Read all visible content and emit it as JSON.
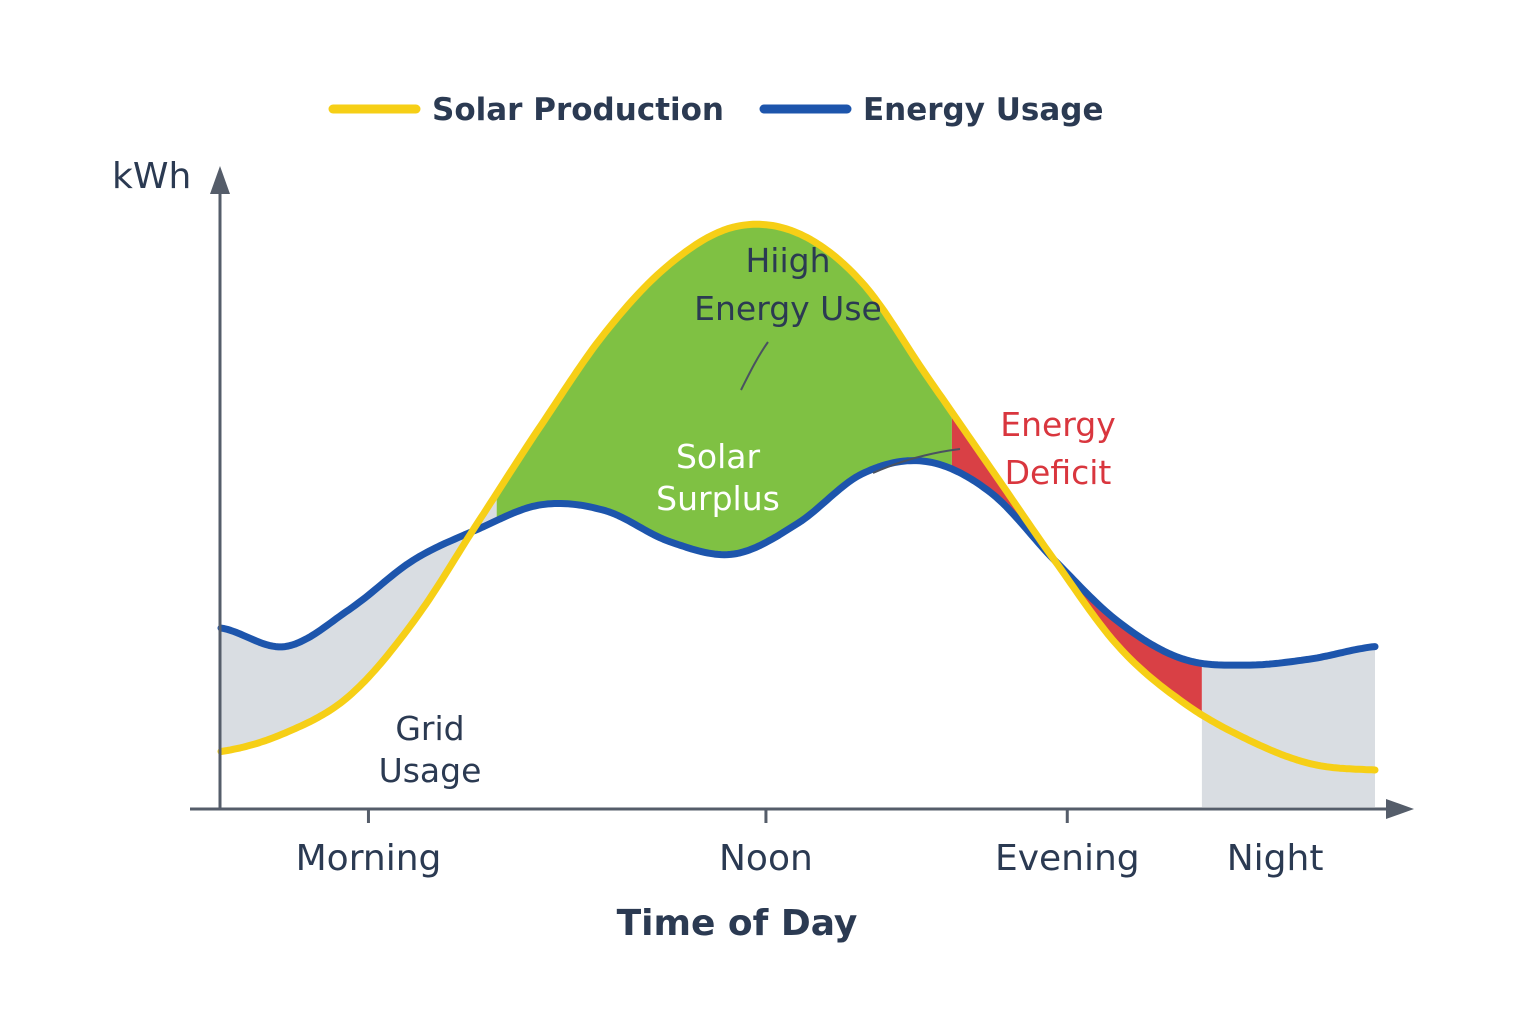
{
  "legend": {
    "solar_label": "Solar Production",
    "usage_label": "Energy Usage"
  },
  "colors": {
    "solar": "#f6cf16",
    "usage": "#1d55ac",
    "surplus": "#7fc143",
    "deficit": "#d94045",
    "grid": "#d9dde2",
    "axis": "#555d6a",
    "text": "#2b3a52",
    "deficit_text": "#d9363e"
  },
  "chart_data": {
    "type": "area",
    "title": "",
    "xlabel": "Time of Day",
    "ylabel": "kWh",
    "x": [
      0,
      1,
      2,
      3,
      4,
      5,
      6,
      7,
      8,
      9,
      10,
      11,
      12,
      13,
      14,
      15,
      16,
      17,
      18
    ],
    "ylim": [
      0,
      10
    ],
    "x_ticks": [
      {
        "x": 2.3,
        "label": "Morning"
      },
      {
        "x": 8.5,
        "label": "Noon"
      },
      {
        "x": 13.2,
        "label": "Evening"
      },
      {
        "x": 17.3,
        "label": "Night"
      }
    ],
    "series": [
      {
        "name": "Solar Production",
        "values": [
          0.9,
          1.2,
          1.8,
          3.0,
          4.6,
          6.2,
          7.7,
          8.8,
          9.4,
          9.3,
          8.5,
          7.0,
          5.5,
          4.0,
          2.6,
          1.7,
          1.1,
          0.7,
          0.6
        ]
      },
      {
        "name": "Energy Usage",
        "values": [
          2.9,
          2.6,
          3.2,
          4.0,
          4.5,
          4.9,
          4.8,
          4.3,
          4.1,
          4.6,
          5.4,
          5.6,
          5.1,
          4.0,
          3.0,
          2.4,
          2.3,
          2.4,
          2.6
        ]
      }
    ],
    "regions": [
      {
        "type": "grid",
        "from": 0,
        "to": 4.3
      },
      {
        "type": "surplus",
        "from": 4.3,
        "to": 11.4
      },
      {
        "type": "deficit",
        "from": 11.4,
        "to": 15.3
      },
      {
        "type": "grid",
        "from": 15.3,
        "to": 18
      }
    ],
    "annotations": {
      "surplus": "Solar\nSurplus",
      "peak": "Hiigh\nEnergy Use",
      "deficit": "Energy\nDeficit",
      "grid": "Grid\nUsage"
    },
    "grid": false,
    "legend_position": "top"
  }
}
